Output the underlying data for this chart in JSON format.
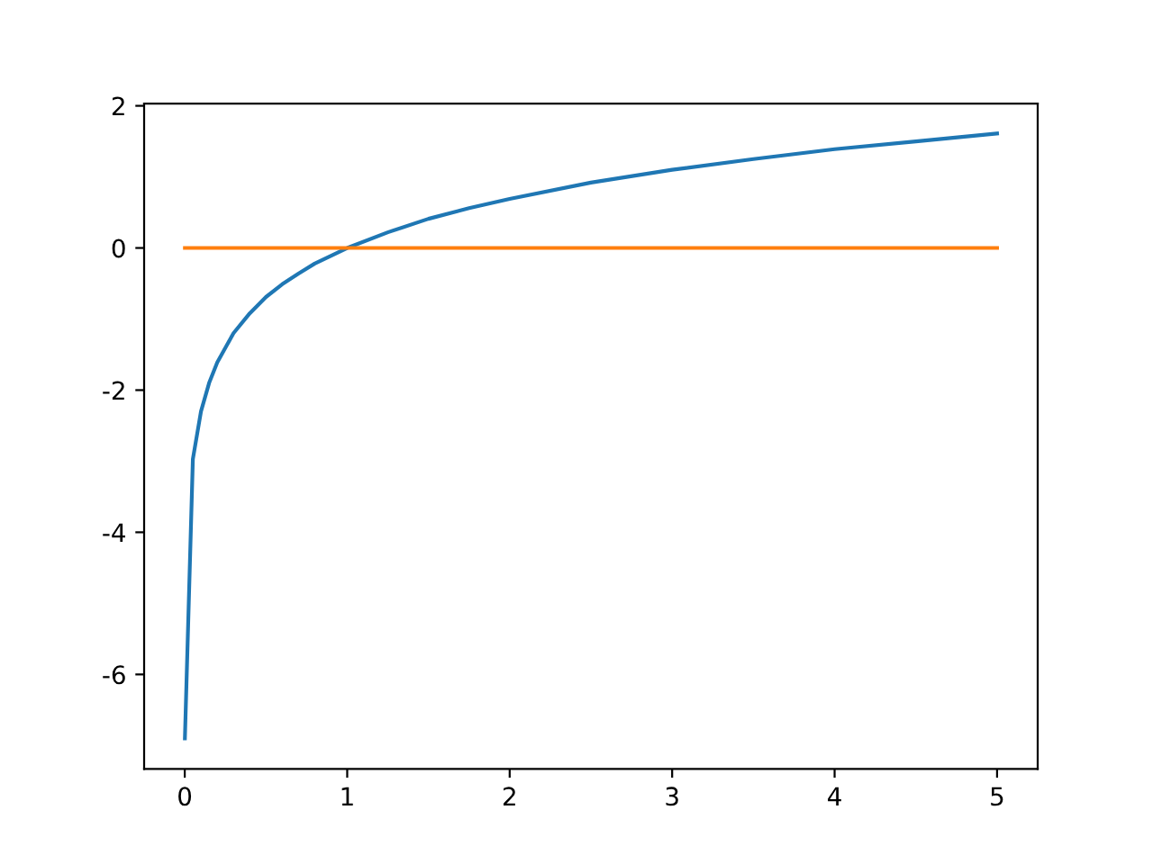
{
  "chart_data": {
    "type": "line",
    "series": [
      {
        "color": "#1f77b4",
        "x": [
          0.001,
          0.05,
          0.1,
          0.15,
          0.2,
          0.3,
          0.4,
          0.5,
          0.6,
          0.7,
          0.8,
          1,
          1.25,
          1.5,
          1.75,
          2,
          2.5,
          3,
          3.5,
          4,
          4.5,
          5
        ],
        "values": [
          -6.9,
          -2.97,
          -2.3,
          -1.9,
          -1.61,
          -1.2,
          -0.92,
          -0.69,
          -0.51,
          -0.36,
          -0.22,
          0,
          0.22,
          0.41,
          0.56,
          0.69,
          0.92,
          1.1,
          1.25,
          1.39,
          1.5,
          1.61
        ]
      },
      {
        "color": "#ff7f0e",
        "x": [
          0.001,
          5
        ],
        "values": [
          0,
          0
        ]
      }
    ],
    "xlim": [
      -0.25,
      5.25
    ],
    "ylim": [
      -7.33,
      2.03
    ],
    "xticks": [
      0,
      1,
      2,
      3,
      4,
      5
    ],
    "yticks": [
      -6,
      -4,
      -2,
      0,
      2
    ],
    "grid": false,
    "legend": false
  }
}
